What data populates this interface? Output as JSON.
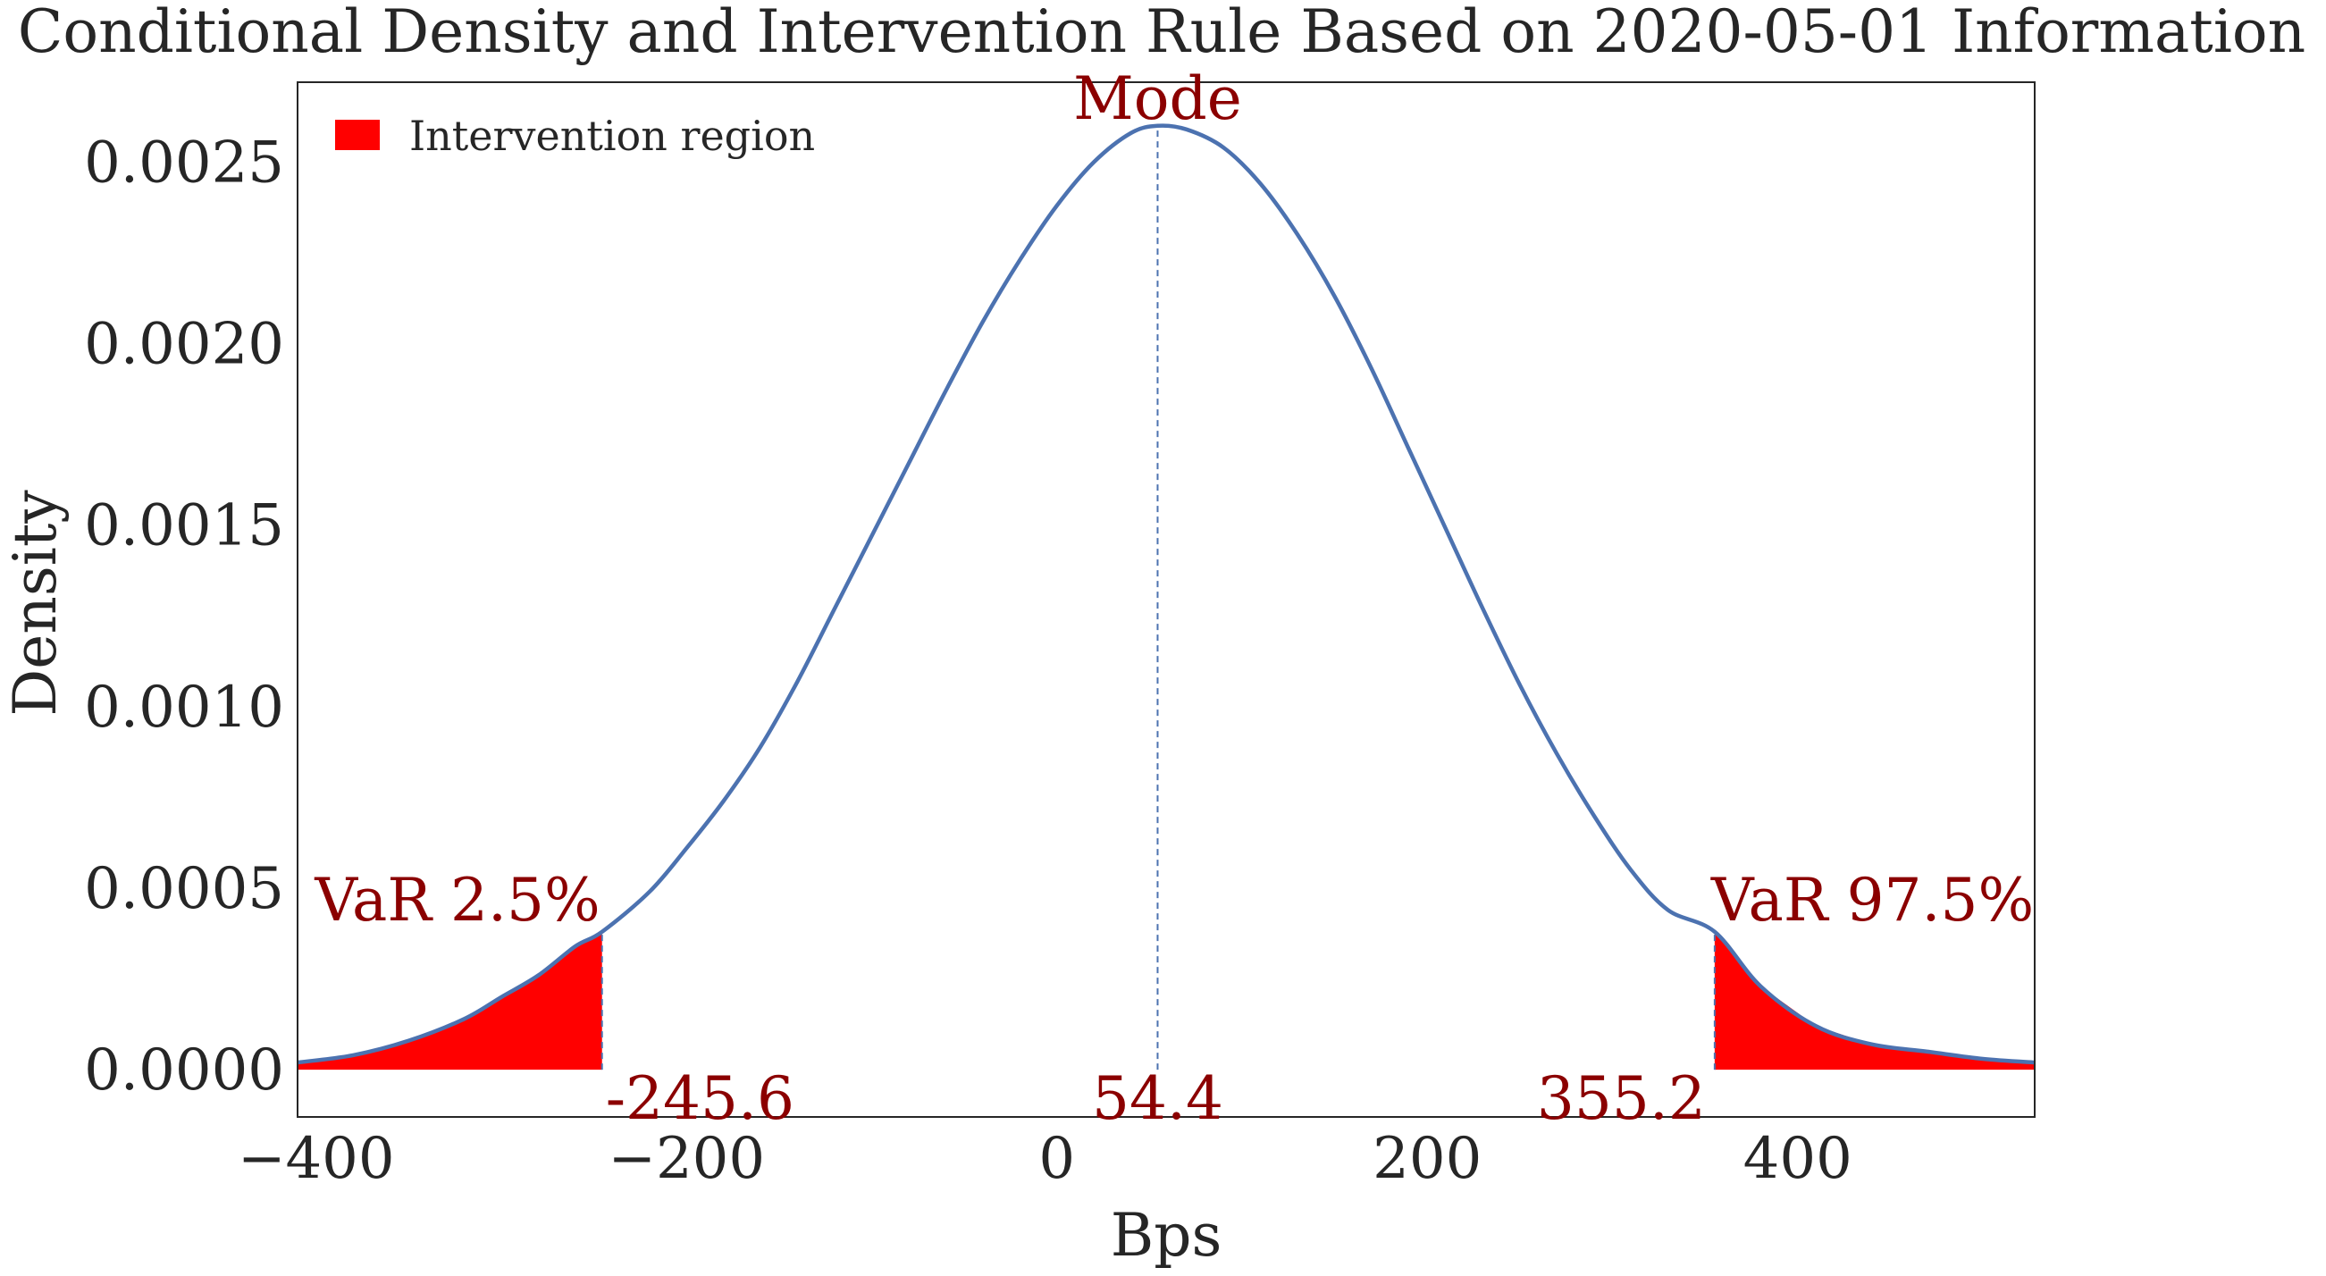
{
  "chart_data": {
    "type": "line",
    "title": "Conditional Density and Intervention Rule Based on 2020-05-01 Information",
    "xlabel": "Bps",
    "ylabel": "Density",
    "xlim": [
      -410,
      528
    ],
    "ylim": [
      -0.00013,
      0.00272
    ],
    "xticks": [
      -400,
      -200,
      0,
      200,
      400
    ],
    "xtick_labels": [
      "−400",
      "−200",
      "0",
      "200",
      "400"
    ],
    "yticks": [
      0.0,
      0.0005,
      0.001,
      0.0015,
      0.002,
      0.0025
    ],
    "ytick_labels": [
      "0.0000",
      "0.0005",
      "0.0010",
      "0.0015",
      "0.0020",
      "0.0025"
    ],
    "grid": false,
    "legend": {
      "placement": "top-left",
      "entries": [
        {
          "label": "Intervention region",
          "color": "#ff0000"
        }
      ]
    },
    "series": [
      {
        "style": "solid",
        "color": "#4c72b0",
        "x": [
          -410,
          -380,
          -350,
          -320,
          -300,
          -280,
          -260,
          -245.6,
          -220,
          -200,
          -180,
          -160,
          -140,
          -120,
          -100,
          -80,
          -60,
          -40,
          -20,
          0,
          20,
          40,
          54.4,
          70,
          90,
          110,
          130,
          150,
          170,
          190,
          210,
          230,
          250,
          270,
          290,
          310,
          330,
          355.2,
          380,
          410,
          440,
          470,
          500,
          528
        ],
        "y": [
          2e-05,
          4e-05,
          8e-05,
          0.00014,
          0.0002,
          0.00026,
          0.00034,
          0.00038,
          0.00049,
          0.00061,
          0.00074,
          0.00089,
          0.00107,
          0.00127,
          0.00147,
          0.00167,
          0.00187,
          0.00206,
          0.00223,
          0.00238,
          0.0025,
          0.00258,
          0.0026,
          0.00259,
          0.00254,
          0.00244,
          0.0023,
          0.00213,
          0.00193,
          0.00171,
          0.00149,
          0.00127,
          0.00106,
          0.00087,
          0.0007,
          0.00055,
          0.00044,
          0.00038,
          0.00023,
          0.00012,
          7e-05,
          5e-05,
          3e-05,
          2e-05
        ]
      }
    ],
    "intervention_regions": [
      {
        "from": -410,
        "to": -245.6
      },
      {
        "from": 355.2,
        "to": 528
      }
    ],
    "vlines": [
      {
        "x": -245.6,
        "top": 0.00038
      },
      {
        "x": 54.4,
        "top": 0.0026
      },
      {
        "x": 355.2,
        "top": 0.00038
      }
    ],
    "annotations": [
      {
        "text": "Mode",
        "x": 54.4
      },
      {
        "text": "VaR 2.5%",
        "x": -245.6
      },
      {
        "text": "VaR 97.5%",
        "x": 355.2
      },
      {
        "text": "-245.6",
        "x": -245.6
      },
      {
        "text": "54.4",
        "x": 54.4
      },
      {
        "text": "355.2",
        "x": 355.2
      }
    ],
    "colors": {
      "curve": "#4c72b0",
      "fill": "#ff0000",
      "annotation": "#8b0000",
      "text": "#262626",
      "frame": "#262626"
    }
  }
}
